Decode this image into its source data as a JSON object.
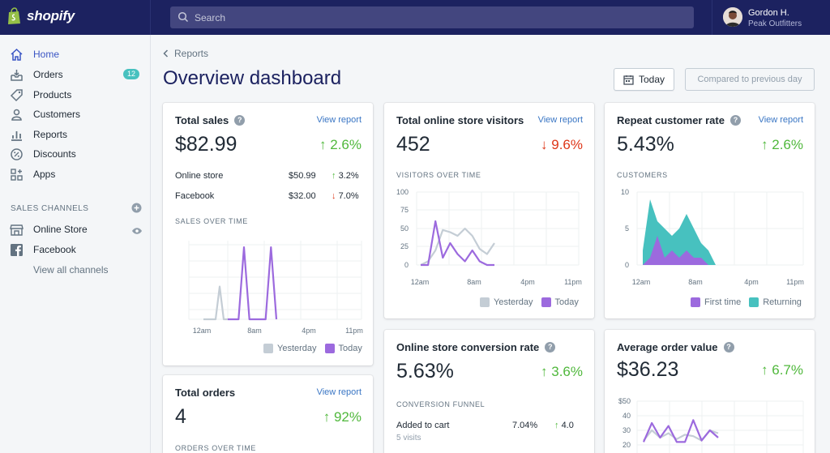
{
  "brand": {
    "name": "shopify"
  },
  "search": {
    "placeholder": "Search"
  },
  "user": {
    "name": "Gordon H.",
    "store": "Peak Outfitters"
  },
  "sidebar": {
    "items": [
      {
        "label": "Home",
        "icon": "home-icon"
      },
      {
        "label": "Orders",
        "icon": "orders-icon",
        "badge": "12"
      },
      {
        "label": "Products",
        "icon": "products-icon"
      },
      {
        "label": "Customers",
        "icon": "customers-icon"
      },
      {
        "label": "Reports",
        "icon": "reports-icon"
      },
      {
        "label": "Discounts",
        "icon": "discounts-icon"
      },
      {
        "label": "Apps",
        "icon": "apps-icon"
      }
    ],
    "sales_channels_header": "SALES CHANNELS",
    "channels": [
      {
        "label": "Online Store",
        "icon": "store-icon"
      },
      {
        "label": "Facebook",
        "icon": "facebook-icon"
      }
    ],
    "view_all": "View all channels"
  },
  "header": {
    "breadcrumb": "Reports",
    "title": "Overview dashboard",
    "date_button": "Today",
    "compare_button": "Compared to previous day"
  },
  "colors": {
    "accent": "#3a55c4",
    "up": "#50b83c",
    "down": "#de3618",
    "today": "#9c6ade",
    "yesterday": "#c4cdd5",
    "returning": "#47c1bf"
  },
  "cards": {
    "total_sales": {
      "title": "Total sales",
      "link": "View report",
      "value": "$82.99",
      "change": "↑ 2.6%",
      "rows": [
        {
          "label": "Online store",
          "amount": "$50.99",
          "change": "↑ 3.2%"
        },
        {
          "label": "Facebook",
          "amount": "$32.00",
          "change": "↓ 7.0%"
        }
      ],
      "chart_label": "SALES OVER TIME",
      "ticks": [
        "12am",
        "8am",
        "4pm",
        "11pm"
      ],
      "legend": [
        "Yesterday",
        "Today"
      ]
    },
    "total_orders": {
      "title": "Total orders",
      "link": "View report",
      "value": "4",
      "change": "↑ 92%",
      "chart_label": "ORDERS OVER TIME"
    },
    "visitors": {
      "title": "Total online store visitors",
      "link": "View report",
      "value": "452",
      "change": "↓ 9.6%",
      "chart_label": "VISITORS OVER TIME",
      "yticks": [
        "100",
        "75",
        "50",
        "25",
        "0"
      ],
      "ticks": [
        "12am",
        "8am",
        "4pm",
        "11pm"
      ],
      "legend": [
        "Yesterday",
        "Today"
      ]
    },
    "conversion": {
      "title": "Online store conversion rate",
      "value": "5.63%",
      "change": "↑ 3.6%",
      "funnel_label": "CONVERSION FUNNEL",
      "rows": [
        {
          "label": "Added to cart",
          "sub": "5 visits",
          "amount": "7.04%",
          "change": "↑ 4.0"
        }
      ]
    },
    "repeat": {
      "title": "Repeat customer rate",
      "link": "View report",
      "value": "5.43%",
      "change": "↑ 2.6%",
      "chart_label": "CUSTOMERS",
      "yticks": [
        "10",
        "5",
        "0"
      ],
      "ticks": [
        "12am",
        "8am",
        "4pm",
        "11pm"
      ],
      "legend": [
        "First time",
        "Returning"
      ]
    },
    "aov": {
      "title": "Average order value",
      "value": "$36.23",
      "change": "↑ 6.7%",
      "yticks": [
        "$50",
        "40",
        "30",
        "20"
      ]
    }
  },
  "chart_data": [
    {
      "type": "line",
      "title": "SALES OVER TIME",
      "x": [
        0,
        1,
        2,
        3,
        4,
        5,
        6,
        7,
        8,
        9,
        10,
        11,
        12,
        13,
        14,
        15,
        16,
        17,
        18,
        19,
        20,
        21,
        22,
        23
      ],
      "xticks": [
        "12am",
        "8am",
        "4pm",
        "11pm"
      ],
      "series": [
        {
          "name": "Yesterday",
          "values": [
            0,
            0,
            0,
            0,
            1,
            0,
            0,
            0,
            0,
            0,
            0,
            0,
            0,
            0,
            0,
            0,
            0,
            0,
            0,
            0,
            0,
            0,
            0,
            0
          ]
        },
        {
          "name": "Today",
          "values": [
            0,
            0,
            0,
            0,
            0,
            0,
            0,
            2.2,
            0,
            0,
            0,
            0,
            2.2,
            0,
            0,
            0,
            0,
            0,
            0,
            0,
            0,
            0,
            0,
            0
          ]
        }
      ]
    },
    {
      "type": "line",
      "title": "VISITORS OVER TIME",
      "xticks": [
        "12am",
        "8am",
        "4pm",
        "11pm"
      ],
      "ylim": [
        0,
        100
      ],
      "series": [
        {
          "name": "Yesterday",
          "values": [
            0,
            5,
            20,
            48,
            45,
            40,
            50,
            40,
            22,
            15,
            30
          ]
        },
        {
          "name": "Today",
          "values": [
            0,
            0,
            60,
            10,
            30,
            15,
            5,
            20,
            5,
            0,
            0
          ]
        }
      ]
    },
    {
      "type": "area",
      "title": "CUSTOMERS",
      "xticks": [
        "12am",
        "8am",
        "4pm",
        "11pm"
      ],
      "ylim": [
        0,
        10
      ],
      "series": [
        {
          "name": "First time",
          "values": [
            0,
            1,
            4,
            1,
            2,
            1,
            2,
            1,
            1,
            0,
            0
          ]
        },
        {
          "name": "Returning",
          "values": [
            2,
            9,
            6,
            5,
            4,
            5,
            7,
            5,
            3,
            2,
            0
          ]
        }
      ]
    },
    {
      "type": "line",
      "title": "Average order value",
      "ylim": [
        20,
        50
      ],
      "series": [
        {
          "name": "Yesterday",
          "values": [
            23,
            30,
            25,
            28,
            24,
            27,
            26,
            23,
            30,
            28
          ]
        },
        {
          "name": "Today",
          "values": [
            22,
            35,
            25,
            33,
            22,
            22,
            37,
            23,
            30,
            25
          ]
        }
      ]
    }
  ]
}
